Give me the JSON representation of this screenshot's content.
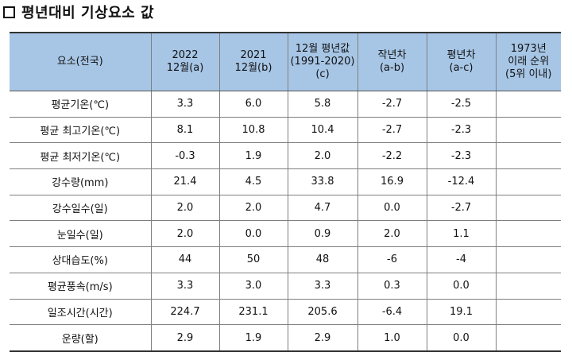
{
  "title": "평년대비 기상요소 값",
  "table": {
    "headers": [
      "요소(전국)",
      "2022\n12월(a)",
      "2021\n12월(b)",
      "12월 평년값\n(1991-2020)\n(c)",
      "작년차\n(a-b)",
      "평년차\n(a-c)",
      "1973년\n이래 순위\n(5위 이내)"
    ],
    "rows": [
      {
        "label": "평균기온(℃)",
        "a": "3.3",
        "b": "6.0",
        "c": "5.8",
        "ab": "-2.7",
        "ac": "-2.5",
        "rank": ""
      },
      {
        "label": "평균 최고기온(℃)",
        "a": "8.1",
        "b": "10.8",
        "c": "10.4",
        "ab": "-2.7",
        "ac": "-2.3",
        "rank": ""
      },
      {
        "label": "평균 최저기온(℃)",
        "a": "-0.3",
        "b": "1.9",
        "c": "2.0",
        "ab": "-2.2",
        "ac": "-2.3",
        "rank": ""
      },
      {
        "label": "강수량(mm)",
        "a": "21.4",
        "b": "4.5",
        "c": "33.8",
        "ab": "16.9",
        "ac": "-12.4",
        "rank": ""
      },
      {
        "label": "강수일수(일)",
        "a": "2.0",
        "b": "2.0",
        "c": "4.7",
        "ab": "0.0",
        "ac": "-2.7",
        "rank": ""
      },
      {
        "label": "눈일수(일)",
        "a": "2.0",
        "b": "0.0",
        "c": "0.9",
        "ab": "2.0",
        "ac": "1.1",
        "rank": ""
      },
      {
        "label": "상대습도(%)",
        "a": "44",
        "b": "50",
        "c": "48",
        "ab": "-6",
        "ac": "-4",
        "rank": ""
      },
      {
        "label": "평균풍속(m/s)",
        "a": "3.3",
        "b": "3.0",
        "c": "3.3",
        "ab": "0.3",
        "ac": "0.0",
        "rank": ""
      },
      {
        "label": "일조시간(시간)",
        "a": "224.7",
        "b": "231.1",
        "c": "205.6",
        "ab": "-6.4",
        "ac": "19.1",
        "rank": ""
      },
      {
        "label": "운량(할)",
        "a": "2.9",
        "b": "1.9",
        "c": "2.9",
        "ab": "1.0",
        "ac": "0.0",
        "rank": ""
      }
    ]
  }
}
